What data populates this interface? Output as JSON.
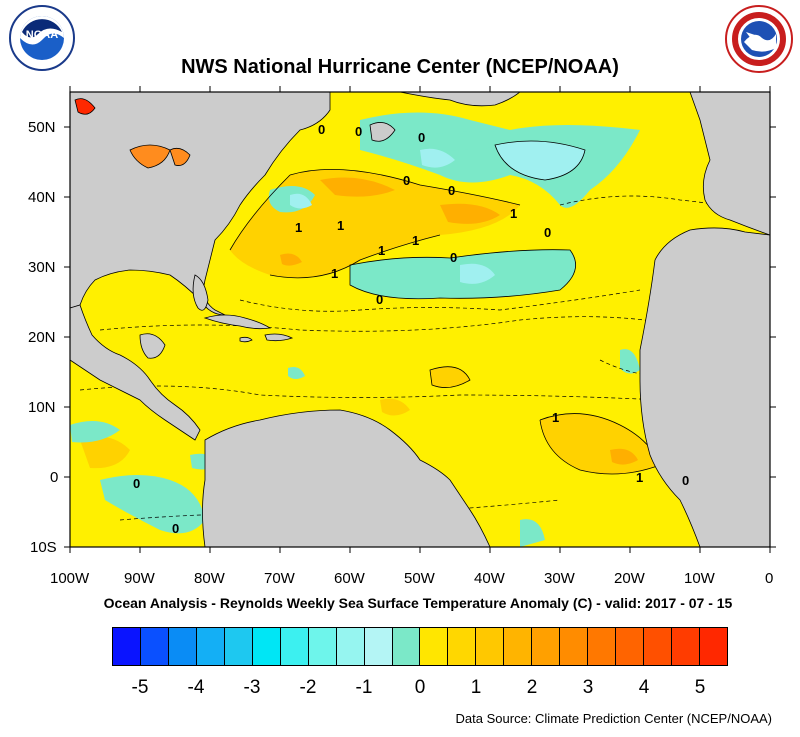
{
  "title": "NWS National Hurricane Center (NCEP/NOAA)",
  "subtitle": "Ocean Analysis - Reynolds Weekly Sea Surface Temperature Anomaly (C) - valid: 2017 - 07 - 15",
  "source": "Data Source: Climate Prediction Center (NCEP/NOAA)",
  "logos": {
    "left": {
      "name": "noaa-logo",
      "text": "NOAA",
      "ring_text": "NATIONAL OCEANIC AND ATMOSPHERIC ADMINISTRATION · U.S. DEPARTMENT OF COMMERCE"
    },
    "right": {
      "name": "nws-logo",
      "ring_text": "NATIONAL WEATHER SERVICE"
    }
  },
  "map": {
    "lat_labels": [
      "50N",
      "40N",
      "30N",
      "20N",
      "10N",
      "0",
      "10S"
    ],
    "lon_labels": [
      "100W",
      "90W",
      "80W",
      "70W",
      "60W",
      "50W",
      "40W",
      "30W",
      "20W",
      "10W",
      "0"
    ],
    "land_color": "#cccccc",
    "contour_labels": [
      "0",
      "0",
      "0",
      "0",
      "0",
      "0",
      "0",
      "0",
      "1",
      "1",
      "1",
      "1",
      "1",
      "1",
      "1",
      "1",
      "0",
      "0",
      "0"
    ]
  },
  "legend": {
    "labels": [
      "-5",
      "-4",
      "-3",
      "-2",
      "-1",
      "0",
      "1",
      "2",
      "3",
      "4",
      "5"
    ],
    "colors": [
      "#0a14ff",
      "#0a50ff",
      "#0a8cf5",
      "#14aff5",
      "#1ec8f0",
      "#00e6f5",
      "#3cf0f0",
      "#6ef5eb",
      "#96f5f0",
      "#b4f5f5",
      "#7be8c8",
      "#ffe600",
      "#ffd700",
      "#ffc800",
      "#ffb400",
      "#ffa000",
      "#ff8c00",
      "#ff7800",
      "#ff6400",
      "#ff5000",
      "#ff3c00",
      "#ff2800"
    ]
  }
}
